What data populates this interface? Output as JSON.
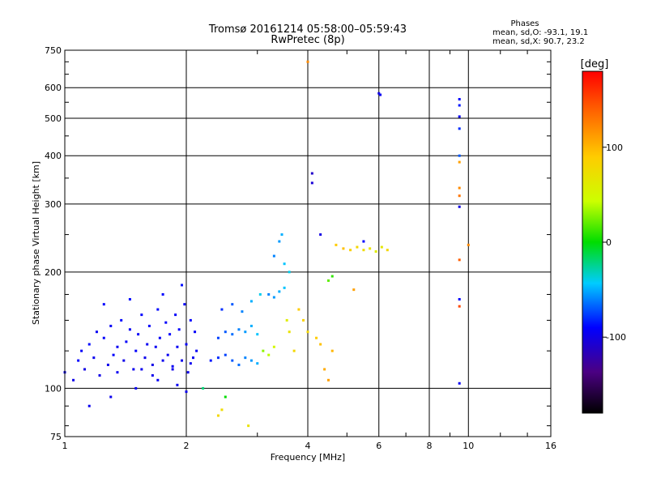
{
  "title": "Tromsø 20161214 05:58:00–05:59:43",
  "subtitle": "RwPretec (8p)",
  "stats": {
    "heading": "Phases",
    "line1": "mean, sd,O: -93.1, 19.1",
    "line2": "mean, sd,X:  90.7, 23.2"
  },
  "colors": {
    "background": "#ffffff",
    "grid": "#000000"
  },
  "chart_data": {
    "type": "scatter",
    "title": "Tromsø 20161214 05:58:00–05:59:43",
    "subtitle": "RwPretec (8p)",
    "xlabel": "Frequency [MHz]",
    "ylabel": "Stationary phase Virtual Height [km]",
    "xscale": "log",
    "yscale": "log",
    "xlim": [
      1,
      16
    ],
    "ylim": [
      75,
      750
    ],
    "xticks": [
      1,
      2,
      4,
      6,
      8,
      10,
      16
    ],
    "yticks": [
      75,
      100,
      200,
      300,
      400,
      500,
      600,
      750
    ],
    "grid": true,
    "colorbar": {
      "label": "[deg]",
      "ticks": [
        -100,
        0,
        100
      ],
      "range": [
        -180,
        180
      ],
      "colormap": "rainbow"
    },
    "series": [
      {
        "points": [
          [
            1.0,
            110,
            -95
          ],
          [
            1.05,
            105,
            -98
          ],
          [
            1.08,
            118,
            -90
          ],
          [
            1.1,
            125,
            -92
          ],
          [
            1.12,
            112,
            -100
          ],
          [
            1.15,
            130,
            -88
          ],
          [
            1.18,
            120,
            -96
          ],
          [
            1.2,
            140,
            -94
          ],
          [
            1.22,
            108,
            -99
          ],
          [
            1.25,
            135,
            -91
          ],
          [
            1.28,
            115,
            -97
          ],
          [
            1.3,
            145,
            -93
          ],
          [
            1.32,
            122,
            -90
          ],
          [
            1.35,
            128,
            -95
          ],
          [
            1.38,
            150,
            -89
          ],
          [
            1.4,
            118,
            -98
          ],
          [
            1.42,
            132,
            -92
          ],
          [
            1.45,
            142,
            -94
          ],
          [
            1.48,
            112,
            -96
          ],
          [
            1.5,
            125,
            -91
          ],
          [
            1.52,
            138,
            -93
          ],
          [
            1.55,
            155,
            -90
          ],
          [
            1.58,
            120,
            -97
          ],
          [
            1.6,
            130,
            -95
          ],
          [
            1.62,
            145,
            -92
          ],
          [
            1.65,
            115,
            -99
          ],
          [
            1.68,
            128,
            -94
          ],
          [
            1.7,
            160,
            -88
          ],
          [
            1.72,
            135,
            -93
          ],
          [
            1.75,
            118,
            -96
          ],
          [
            1.78,
            148,
            -91
          ],
          [
            1.8,
            122,
            -95
          ],
          [
            1.82,
            138,
            -90
          ],
          [
            1.85,
            112,
            -98
          ],
          [
            1.88,
            155,
            -92
          ],
          [
            1.9,
            128,
            -94
          ],
          [
            1.92,
            142,
            -89
          ],
          [
            1.95,
            118,
            -97
          ],
          [
            1.98,
            165,
            -91
          ],
          [
            2.0,
            130,
            -93
          ],
          [
            2.02,
            110,
            -96
          ],
          [
            2.05,
            150,
            -90
          ],
          [
            2.08,
            120,
            -95
          ],
          [
            2.1,
            140,
            -92
          ],
          [
            2.12,
            125,
            -94
          ],
          [
            1.3,
            95,
            -96
          ],
          [
            1.5,
            100,
            -94
          ],
          [
            1.7,
            105,
            -93
          ],
          [
            1.9,
            102,
            -95
          ],
          [
            2.0,
            98,
            -97
          ],
          [
            1.25,
            165,
            -90
          ],
          [
            1.45,
            170,
            -88
          ],
          [
            1.75,
            175,
            -89
          ],
          [
            1.95,
            185,
            -87
          ],
          [
            1.15,
            90,
            -96
          ],
          [
            1.35,
            110,
            -95
          ],
          [
            1.55,
            112,
            -96
          ],
          [
            1.65,
            108,
            -97
          ],
          [
            1.85,
            114,
            -94
          ],
          [
            2.05,
            116,
            -95
          ]
        ]
      },
      {
        "points": [
          [
            2.3,
            118,
            -85
          ],
          [
            2.4,
            120,
            -80
          ],
          [
            2.5,
            122,
            -75
          ],
          [
            2.6,
            118,
            -70
          ],
          [
            2.7,
            115,
            -65
          ],
          [
            2.8,
            120,
            -60
          ],
          [
            2.9,
            118,
            -55
          ],
          [
            3.0,
            116,
            -50
          ],
          [
            2.4,
            135,
            -75
          ],
          [
            2.5,
            140,
            -70
          ],
          [
            2.6,
            138,
            -65
          ],
          [
            2.7,
            142,
            -60
          ],
          [
            2.8,
            140,
            -55
          ],
          [
            2.9,
            145,
            -50
          ],
          [
            3.0,
            138,
            -45
          ],
          [
            2.45,
            160,
            -80
          ],
          [
            2.6,
            165,
            -70
          ],
          [
            2.75,
            158,
            -60
          ],
          [
            2.9,
            168,
            -50
          ],
          [
            3.05,
            175,
            -40
          ],
          [
            3.2,
            175,
            -60
          ],
          [
            3.3,
            172,
            -55
          ],
          [
            3.4,
            178,
            -50
          ],
          [
            3.5,
            182,
            -45
          ],
          [
            3.3,
            220,
            -60
          ],
          [
            3.4,
            240,
            -55
          ],
          [
            3.45,
            250,
            -50
          ],
          [
            3.5,
            210,
            -45
          ],
          [
            3.6,
            200,
            -40
          ],
          [
            3.1,
            125,
            30
          ],
          [
            3.2,
            122,
            40
          ],
          [
            3.3,
            128,
            50
          ],
          [
            3.55,
            150,
            60
          ],
          [
            3.6,
            140,
            70
          ],
          [
            3.7,
            125,
            80
          ],
          [
            2.4,
            85,
            80
          ],
          [
            2.45,
            88,
            75
          ],
          [
            2.85,
            80,
            70
          ],
          [
            2.5,
            95,
            0
          ],
          [
            2.2,
            100,
            -20
          ]
        ]
      },
      {
        "points": [
          [
            3.8,
            160,
            90
          ],
          [
            3.9,
            150,
            85
          ],
          [
            4.0,
            140,
            80
          ],
          [
            4.2,
            135,
            90
          ],
          [
            4.3,
            130,
            95
          ],
          [
            4.5,
            190,
            20
          ],
          [
            4.6,
            195,
            10
          ],
          [
            4.6,
            125,
            100
          ],
          [
            4.5,
            105,
            110
          ],
          [
            4.4,
            112,
            105
          ],
          [
            4.7,
            235,
            90
          ],
          [
            4.9,
            230,
            95
          ],
          [
            5.1,
            228,
            85
          ],
          [
            5.3,
            232,
            80
          ],
          [
            5.5,
            228,
            75
          ],
          [
            5.7,
            230,
            70
          ],
          [
            5.9,
            226,
            60
          ],
          [
            6.1,
            232,
            65
          ],
          [
            6.3,
            228,
            80
          ],
          [
            5.2,
            180,
            110
          ],
          [
            4.0,
            700,
            120
          ],
          [
            4.1,
            360,
            -110
          ],
          [
            4.1,
            340,
            -105
          ],
          [
            4.3,
            250,
            -100
          ],
          [
            5.5,
            240,
            -90
          ],
          [
            6.0,
            580,
            -100
          ],
          [
            6.05,
            575,
            -95
          ]
        ]
      },
      {
        "points": [
          [
            9.5,
            560,
            -90
          ],
          [
            9.5,
            540,
            -85
          ],
          [
            9.5,
            505,
            -95
          ],
          [
            9.5,
            470,
            -80
          ],
          [
            9.5,
            400,
            -70
          ],
          [
            9.5,
            385,
            110
          ],
          [
            9.5,
            330,
            120
          ],
          [
            9.5,
            315,
            130
          ],
          [
            9.5,
            295,
            -100
          ],
          [
            9.5,
            215,
            140
          ],
          [
            9.5,
            170,
            -90
          ],
          [
            9.5,
            163,
            150
          ],
          [
            9.5,
            103,
            -95
          ],
          [
            10.0,
            235,
            120
          ]
        ]
      }
    ]
  }
}
